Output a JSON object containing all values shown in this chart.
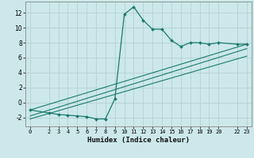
{
  "xlabel": "Humidex (Indice chaleur)",
  "bg_color": "#cce8ea",
  "grid_color": "#b8d4d6",
  "line_color": "#1a7a6e",
  "xlim": [
    -0.5,
    23.5
  ],
  "ylim": [
    -3.2,
    13.5
  ],
  "xticks": [
    0,
    2,
    3,
    4,
    5,
    6,
    7,
    8,
    9,
    10,
    11,
    12,
    13,
    14,
    15,
    16,
    17,
    18,
    19,
    20,
    22,
    23
  ],
  "yticks": [
    -2,
    0,
    2,
    4,
    6,
    8,
    10,
    12
  ],
  "curve1_x": [
    0,
    2,
    3,
    4,
    5,
    6,
    7,
    8,
    9,
    10,
    11,
    12,
    13,
    14,
    15,
    16,
    17,
    18,
    19,
    20,
    22,
    23
  ],
  "curve1_y": [
    -1.0,
    -1.4,
    -1.6,
    -1.7,
    -1.8,
    -1.9,
    -2.2,
    -2.2,
    0.5,
    11.8,
    12.8,
    11.0,
    9.8,
    9.8,
    8.3,
    7.5,
    8.0,
    8.0,
    7.8,
    8.0,
    7.8,
    7.8
  ],
  "line2_x": [
    0,
    23
  ],
  "line2_y": [
    -1.0,
    7.8
  ],
  "line3_x": [
    0,
    23
  ],
  "line3_y": [
    -2.2,
    6.2
  ],
  "line4_x": [
    0,
    23
  ],
  "line4_y": [
    -1.8,
    7.2
  ]
}
